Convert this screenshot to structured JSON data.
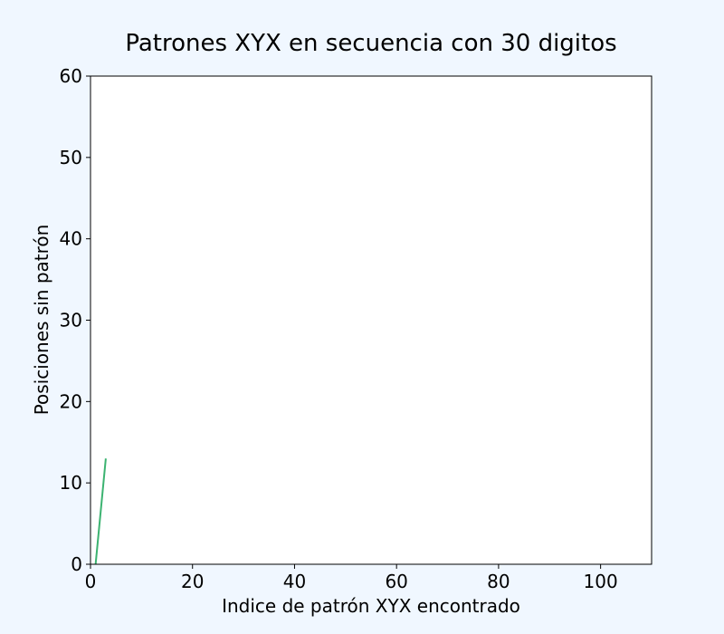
{
  "chart_data": {
    "type": "line",
    "title": "Patrones XYX en secuencia con 30 digitos",
    "xlabel": "Indice de patrón XYX encontrado",
    "ylabel": "Posiciones sin patrón",
    "xlim": [
      0,
      110
    ],
    "ylim": [
      0,
      60
    ],
    "xticks": [
      0,
      20,
      40,
      60,
      80,
      100
    ],
    "yticks": [
      0,
      10,
      20,
      30,
      40,
      50,
      60
    ],
    "grid": false,
    "series": [
      {
        "name": "posiciones",
        "color": "#3cb371",
        "x": [
          1,
          3
        ],
        "y": [
          0,
          13
        ]
      }
    ]
  },
  "colors": {
    "background": "#f0f7ff",
    "plot_area": "#ffffff",
    "axis": "#000000"
  }
}
